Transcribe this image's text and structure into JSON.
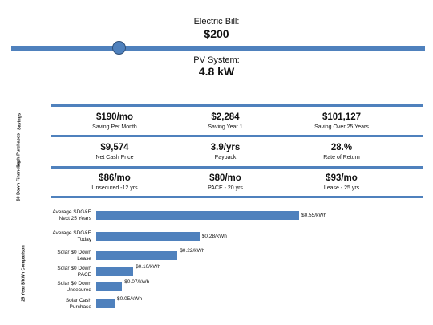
{
  "bill": {
    "label": "Electric Bill:",
    "value": "$200"
  },
  "slider": {
    "value_fraction": 0.26
  },
  "pv": {
    "label": "PV System:",
    "value": "4.8 kW"
  },
  "sections": {
    "savings": {
      "label": "Savings",
      "metrics": [
        {
          "value": "$190/mo",
          "label": "Saving Per Month"
        },
        {
          "value": "$2,284",
          "label": "Saving Year 1"
        },
        {
          "value": "$101,127",
          "label": "Saving Over 25 Years"
        }
      ]
    },
    "cash": {
      "label": "Cash Purchases",
      "metrics": [
        {
          "value": "$9,574",
          "label": "Net Cash Price"
        },
        {
          "value": "3.9/yrs",
          "label": "Payback"
        },
        {
          "value": "28.%",
          "label": "Rate of Return"
        }
      ]
    },
    "financing": {
      "label": "$0 Down Financing",
      "metrics": [
        {
          "value": "$86/mo",
          "label": "Unsecured -12 yrs"
        },
        {
          "value": "$80/mo",
          "label": "PACE - 20 yrs"
        },
        {
          "value": "$93/mo",
          "label": "Lease - 25 yrs"
        }
      ]
    }
  },
  "chart_data": {
    "type": "bar",
    "title": "",
    "side_label": "25 Year $/kWh Comparison",
    "categories": [
      "Average SDG&E Next 25 Years",
      "Average SDG&E Today",
      "Solar $0 Down Lease",
      "Solar $0 Down PACE",
      "Solar $0 Down Unsecured",
      "Solar Cash Purchase"
    ],
    "category_lines": [
      [
        "Average SDG&E",
        "Next 25 Years"
      ],
      [
        "Average SDG&E",
        "Today"
      ],
      [
        "Solar $0 Down",
        "Lease"
      ],
      [
        "Solar $0 Down",
        "PACE"
      ],
      [
        "Solar $0 Down",
        "Unsecured"
      ],
      [
        "Solar Cash",
        "Purchase"
      ]
    ],
    "values": [
      0.55,
      0.28,
      0.22,
      0.1,
      0.07,
      0.05
    ],
    "value_labels": [
      "$0.55/kWh",
      "$0.28/kWh",
      "$0.22/kWh",
      "$0.10/kWh",
      "$0.07/kWh",
      "$0.05/kWh"
    ],
    "xlim": [
      0,
      0.55
    ],
    "color": "#4f81bd"
  }
}
